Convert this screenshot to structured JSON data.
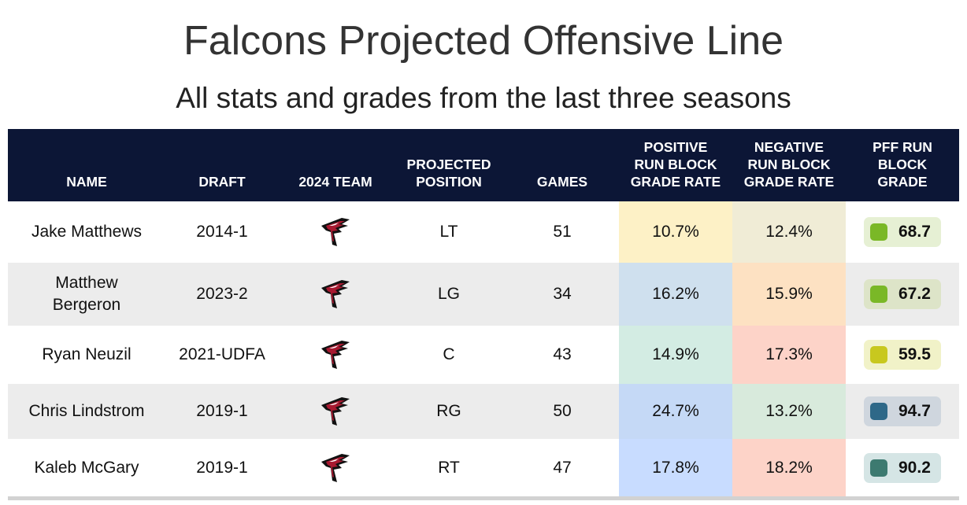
{
  "title": "Falcons Projected Offensive Line",
  "subtitle": "All stats and grades from the last three seasons",
  "headers": {
    "name": "NAME",
    "draft": "DRAFT",
    "team": "2024 TEAM",
    "position": "PROJECTED\nPOSITION",
    "games": "GAMES",
    "positive": "POSITIVE\nRUN BLOCK\nGRADE RATE",
    "negative": "NEGATIVE\nRUN BLOCK\nGRADE RATE",
    "pff": "PFF RUN\nBLOCK\nGRADE"
  },
  "team_logo_icon": "falcons-logo-icon",
  "rows": [
    {
      "name": "Jake Matthews",
      "draft": "2014-1",
      "position": "LT",
      "games": "51",
      "positive": "10.7%",
      "negative": "12.4%",
      "pff": "68.7",
      "positive_color": "#fdf1c6",
      "negative_color": "#f0ecd6",
      "pff_bg": "#e6f0d4",
      "pff_square": "#7ab827"
    },
    {
      "name": "Matthew\nBergeron",
      "draft": "2023-2",
      "position": "LG",
      "games": "34",
      "positive": "16.2%",
      "negative": "15.9%",
      "pff": "67.2",
      "positive_color": "#cfe0ee",
      "negative_color": "#fde1c2",
      "pff_bg": "#dde4c8",
      "pff_square": "#7ab827"
    },
    {
      "name": "Ryan Neuzil",
      "draft": "2021-UDFA",
      "position": "C",
      "games": "43",
      "positive": "14.9%",
      "negative": "17.3%",
      "pff": "59.5",
      "positive_color": "#d3ece3",
      "negative_color": "#fdd3c8",
      "pff_bg": "#f1f2c8",
      "pff_square": "#c8c81e"
    },
    {
      "name": "Chris Lindstrom",
      "draft": "2019-1",
      "position": "RG",
      "games": "50",
      "positive": "24.7%",
      "negative": "13.2%",
      "pff": "94.7",
      "positive_color": "#c5d9f6",
      "negative_color": "#d8eadc",
      "pff_bg": "#cfd6de",
      "pff_square": "#2e6888"
    },
    {
      "name": "Kaleb McGary",
      "draft": "2019-1",
      "position": "RT",
      "games": "47",
      "positive": "17.8%",
      "negative": "18.2%",
      "pff": "90.2",
      "positive_color": "#c8dcff",
      "negative_color": "#fdd3c8",
      "pff_bg": "#d5e5e5",
      "pff_square": "#3d7a70"
    }
  ]
}
